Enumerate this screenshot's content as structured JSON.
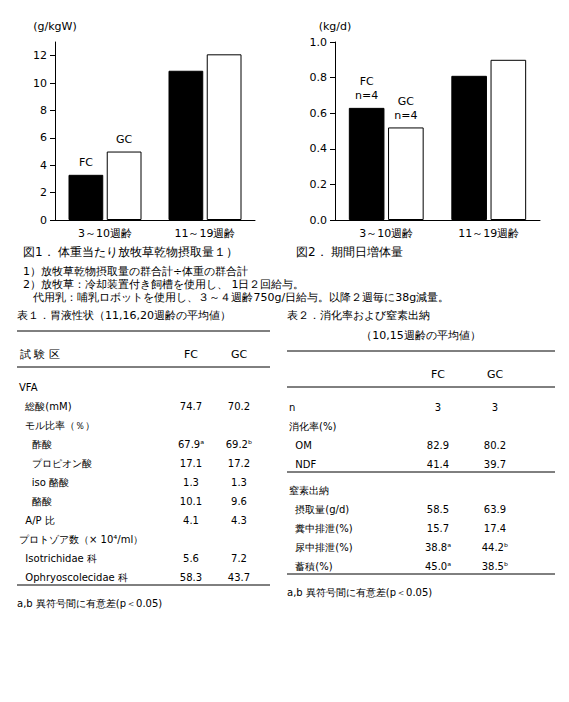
{
  "chart_data": [
    {
      "type": "bar",
      "title": "図1． 体重当たり放牧草乾物摂取量１）",
      "y_label": "(g/kgW)",
      "categories": [
        "3～10週齢",
        "11～19週齢"
      ],
      "series": [
        {
          "name": "FC",
          "color": "#000000",
          "values": [
            3.3,
            10.9
          ]
        },
        {
          "name": "GC",
          "color": "#ffffff",
          "values": [
            5.0,
            12.1
          ]
        }
      ],
      "ylim": [
        0,
        13
      ],
      "yticks": [
        0,
        2,
        4,
        6,
        8,
        10,
        12
      ],
      "grid": false,
      "annotations": [
        {
          "series": "FC",
          "category": "3～10週齢",
          "text": [
            "FC"
          ]
        },
        {
          "series": "GC",
          "category": "3～10週齢",
          "text": [
            "GC"
          ]
        }
      ]
    },
    {
      "type": "bar",
      "title": "図2． 期間日増体量",
      "y_label": "(kg/d)",
      "categories": [
        "3～10週齢",
        "11～19週齢"
      ],
      "series": [
        {
          "name": "FC",
          "color": "#000000",
          "values": [
            0.63,
            0.81
          ]
        },
        {
          "name": "GC",
          "color": "#ffffff",
          "values": [
            0.52,
            0.9
          ]
        }
      ],
      "ylim": [
        0.0,
        1.0
      ],
      "yticks": [
        {
          "value": 0,
          "label": "0.0"
        },
        0.2,
        0.4,
        0.6,
        0.8,
        {
          "value": 1,
          "label": "1.0"
        }
      ],
      "grid": false,
      "annotations": [
        {
          "series": "FC",
          "category": "3～10週齢",
          "text": [
            "FC",
            "n=4"
          ]
        },
        {
          "series": "GC",
          "category": "3～10週齢",
          "text": [
            "GC",
            "n=4"
          ]
        }
      ]
    }
  ],
  "footnotes": [
    "1）放牧草乾物摂取量の群合計÷体重の群合計",
    "2）放牧草：冷却装置付き飼槽を使用し、 1日２回給与。",
    "   代用乳：哺乳ロボットを使用し、３～４週齢750g/日給与。以降２週毎に38g減量。"
  ],
  "tables": [
    {
      "title": "表１．胃液性状（11,16,20週齢の平均値）",
      "row_header": "試 験 区",
      "columns": [
        "FC",
        "GC"
      ],
      "row_groups": [
        [
          [
            "VFA",
            null,
            null
          ],
          [
            "  総酸(mM)",
            "74.7",
            "70.2"
          ],
          [
            "  モル比率（％）",
            null,
            null
          ],
          [
            "    酢酸",
            "67.9ᵃ",
            "69.2ᵇ"
          ],
          [
            "    プロピオン酸",
            "17.1",
            "17.2"
          ],
          [
            "    iso 酪酸",
            "1.3",
            "1.3"
          ],
          [
            "    酪酸",
            "10.1",
            "9.6"
          ],
          [
            "  A/P 比",
            "4.1",
            "4.3"
          ],
          [
            "プロトゾア数（× 10⁴/ml）",
            null,
            null
          ],
          [
            "  Isotrichidae 科",
            "5.6",
            "7.2"
          ],
          [
            "  Ophryoscolecidae 科",
            "58.3",
            "43.7"
          ]
        ]
      ],
      "note": "a,b 異符号間に有意差(p＜0.05)"
    },
    {
      "title": "表２．消化率および窒素出納",
      "subtitle": "（10,15週齢の平均値）",
      "columns": [
        "FC",
        "GC"
      ],
      "row_groups": [
        [
          [
            "n",
            "3",
            "3"
          ],
          [
            "消化率(%)",
            null,
            null
          ],
          [
            "  OM",
            "82.9",
            "80.2"
          ],
          [
            "  NDF",
            "41.4",
            "39.7"
          ]
        ],
        [
          [
            "窒素出納",
            null,
            null
          ],
          [
            "  摂取量(g/d)",
            "58.5",
            "63.9"
          ],
          [
            "  糞中排泄(%)",
            "15.7",
            "17.4"
          ],
          [
            "  尿中排泄(%)",
            "38.8ᵃ",
            "44.2ᵇ"
          ],
          [
            "  蓄積(%)",
            "45.0ᵃ",
            "38.5ᵇ"
          ]
        ]
      ],
      "note": "a,b 異符号間に有意差(p＜0.05)"
    }
  ]
}
